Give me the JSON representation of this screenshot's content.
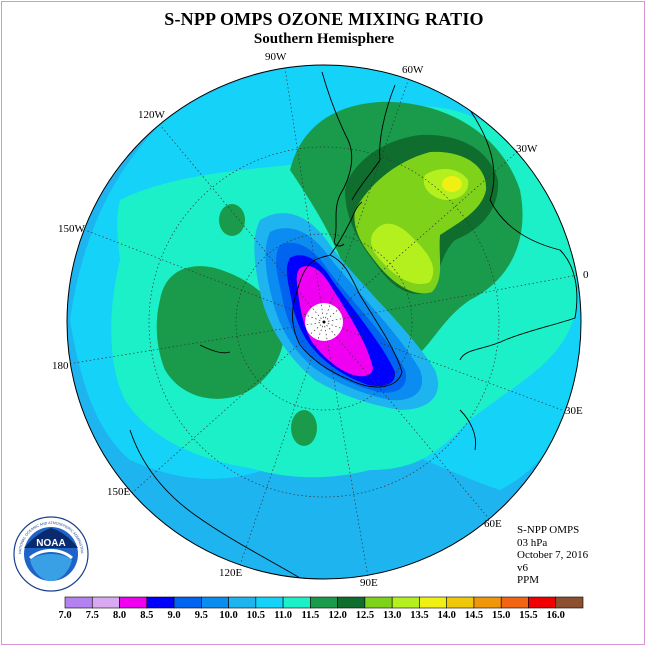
{
  "header": {
    "title": "S-NPP OMPS OZONE MIXING RATIO",
    "subtitle": "Southern Hemisphere"
  },
  "longitude_labels": [
    "90W",
    "60W",
    "30W",
    "120W",
    "150W",
    "0",
    "180",
    "30E",
    "150E",
    "60E",
    "120E",
    "90E"
  ],
  "info": {
    "instrument": "S-NPP OMPS",
    "level": "03 hPa",
    "date": "October 7, 2016",
    "version": "v6",
    "units": "PPM"
  },
  "logo": {
    "text": "NOAA",
    "ring_text": "NATIONAL OCEANIC AND ATMOSPHERIC ADMINISTRATION · U.S. DEPARTMENT OF COMMERCE"
  },
  "colorbar": {
    "labels": [
      "7.0",
      "7.5",
      "8.0",
      "8.5",
      "9.0",
      "9.5",
      "10.0",
      "10.5",
      "11.0",
      "11.5",
      "12.0",
      "12.5",
      "13.0",
      "13.5",
      "14.0",
      "14.5",
      "15.0",
      "15.5",
      "16.0"
    ],
    "colors": [
      "#b481f0",
      "#d8a8f0",
      "#f000f0",
      "#0000ff",
      "#0064f0",
      "#0a8cf0",
      "#1eb4f0",
      "#14d2f8",
      "#1cf0c8",
      "#1a9b4b",
      "#0f6e2d",
      "#7fd21a",
      "#b4f01e",
      "#f0f014",
      "#f0c80a",
      "#f0960a",
      "#f06414",
      "#f00000",
      "#8c5030"
    ]
  }
}
